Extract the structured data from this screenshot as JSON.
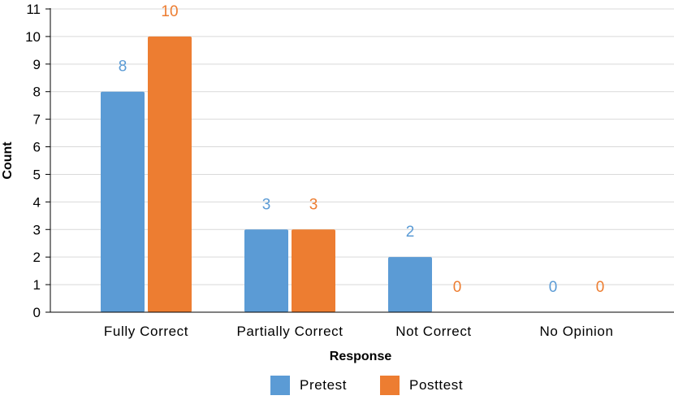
{
  "chart_data": {
    "type": "bar",
    "title": "",
    "xlabel": "Response",
    "ylabel": "Count",
    "categories": [
      "Fully Correct",
      "Partially Correct",
      "Not Correct",
      "No Opinion"
    ],
    "series": [
      {
        "name": "Pretest",
        "values": [
          8,
          3,
          2,
          0
        ],
        "color": "#5b9bd5"
      },
      {
        "name": "Posttest",
        "values": [
          10,
          3,
          0,
          0
        ],
        "color": "#ed7d31"
      }
    ],
    "ylim": [
      0,
      11
    ],
    "yticks": [
      "0",
      "1",
      "2",
      "3",
      "4",
      "5",
      "6",
      "7",
      "8",
      "9",
      "10",
      "11"
    ],
    "grid": true,
    "legend_position": "bottom",
    "data_labels": true,
    "gridline_color": "#d9d9d9",
    "axis_color": "#000000"
  }
}
